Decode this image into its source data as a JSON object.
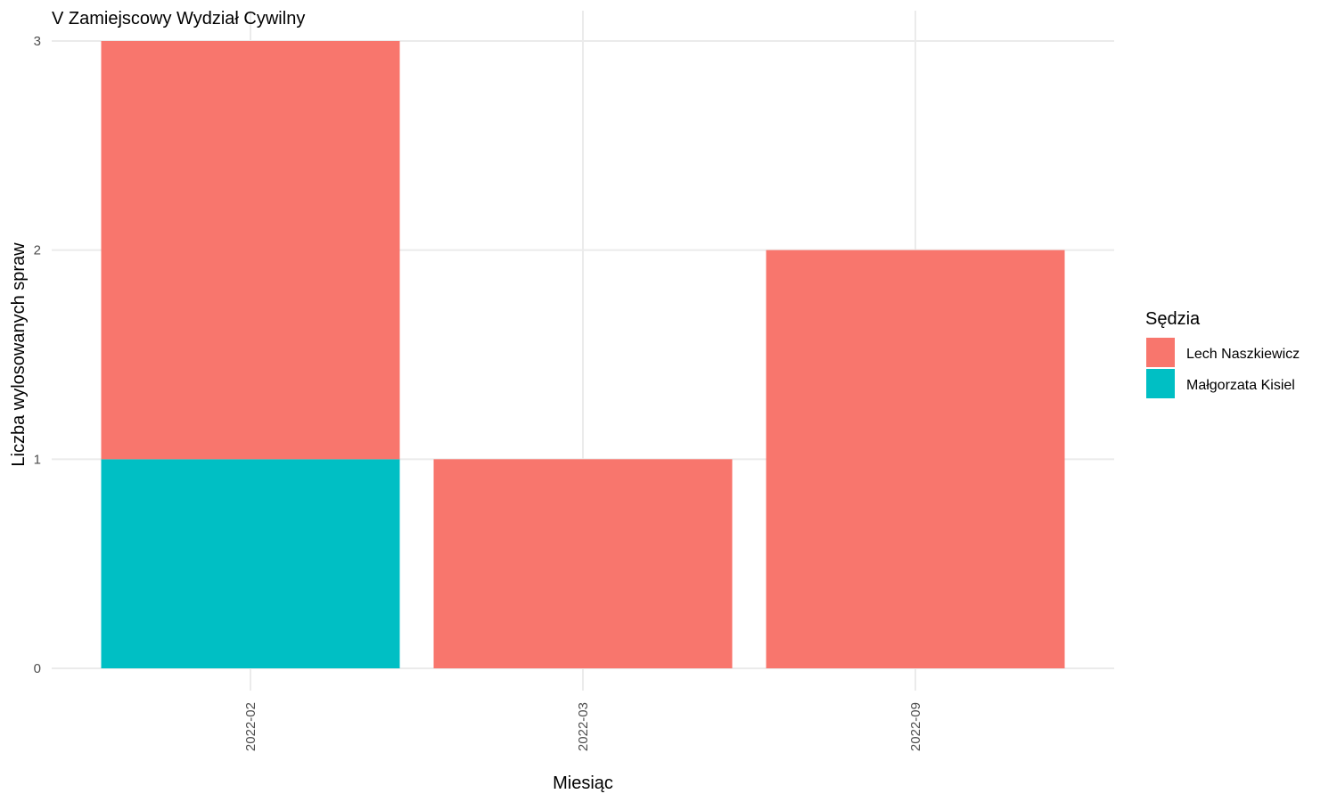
{
  "chart_data": {
    "type": "bar",
    "stacked": true,
    "title": "V Zamiejscowy Wydział Cywilny",
    "xlabel": "Miesiąc",
    "ylabel": "Liczba wylosowanych spraw",
    "categories": [
      "2022-02",
      "2022-03",
      "2022-09"
    ],
    "series": [
      {
        "name": "Małgorzata Kisiel",
        "values": [
          1,
          0,
          0
        ],
        "color": "#00BFC4"
      },
      {
        "name": "Lech Naszkiewicz",
        "values": [
          2,
          1,
          2
        ],
        "color": "#F8766D"
      }
    ],
    "ylim": [
      0,
      3
    ],
    "yticks": [
      0,
      1,
      2,
      3
    ],
    "grid": true,
    "legend": {
      "title": "Sędzia",
      "placement": "right",
      "order": [
        "Lech Naszkiewicz",
        "Małgorzata Kisiel"
      ]
    }
  }
}
